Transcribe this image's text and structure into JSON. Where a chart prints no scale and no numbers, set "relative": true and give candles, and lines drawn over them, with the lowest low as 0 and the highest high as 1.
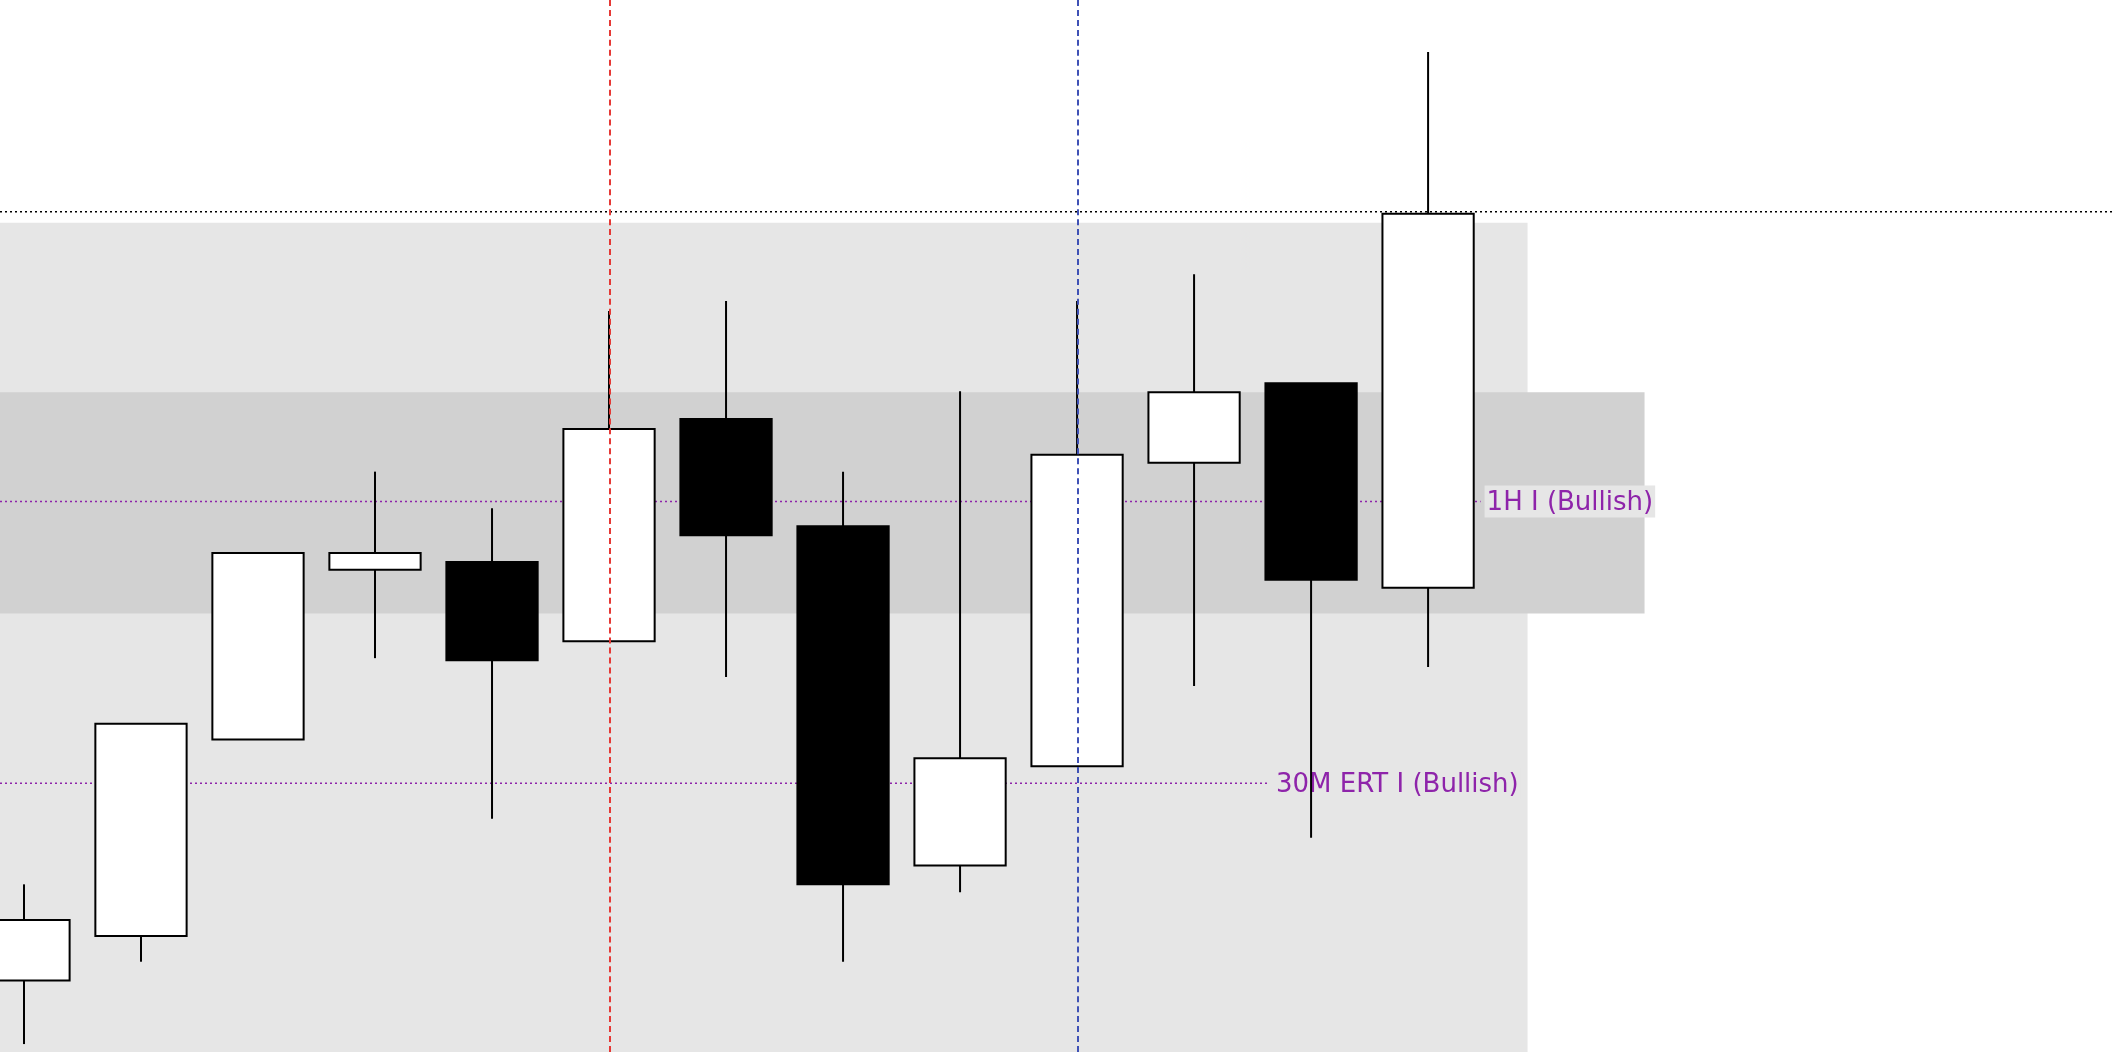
{
  "chart_data": {
    "type": "candlestick",
    "relative": true,
    "categories": [
      null,
      null,
      null,
      null,
      null,
      null,
      null,
      null,
      null,
      null,
      null,
      null,
      null
    ],
    "ohlc": [
      [
        0.064,
        0.161,
        0,
        0.125
      ],
      [
        0.109,
        0.323,
        0.083,
        0.323
      ],
      [
        0.307,
        0.495,
        0.307,
        0.495
      ],
      [
        0.478,
        0.577,
        0.389,
        0.495
      ],
      [
        0.486,
        0.54,
        0.227,
        0.387
      ],
      [
        0.406,
        0.739,
        0.406,
        0.62
      ],
      [
        0.63,
        0.749,
        0.37,
        0.513
      ],
      [
        0.522,
        0.577,
        0.083,
        0.161
      ],
      [
        0.18,
        0.658,
        0.153,
        0.288
      ],
      [
        0.28,
        0.749,
        0.28,
        0.594
      ],
      [
        0.586,
        0.776,
        0.361,
        0.657
      ],
      [
        0.666,
        0.666,
        0.208,
        0.468
      ],
      [
        0.46,
        1,
        0.38,
        0.837
      ]
    ],
    "bands": [
      {
        "axis": "y",
        "from": -0.008,
        "to": 0.828,
        "color": "#e6e6e6"
      },
      {
        "axis": "y",
        "from": 0.434,
        "to": 0.657,
        "color": "#d1d1d1"
      }
    ],
    "ref_lines": [
      {
        "axis": "y",
        "value": 0.839,
        "color": "#000000",
        "line_style": "dotted"
      },
      {
        "axis": "y",
        "value": 0.547,
        "label": "1H I (Bullish)",
        "color": "#8e24aa",
        "line_style": "dotted"
      },
      {
        "axis": "y",
        "value": 0.263,
        "label": "30M ERT I (Bullish)",
        "color": "#8e24aa",
        "line_style": "dotted"
      }
    ]
  }
}
